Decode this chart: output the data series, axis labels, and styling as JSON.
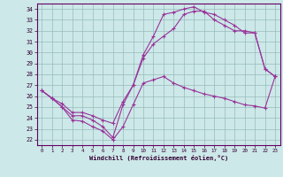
{
  "xlabel": "Windchill (Refroidissement éolien,°C)",
  "bg_color": "#cce8e8",
  "line_color": "#993399",
  "grid_color": "#99bbbb",
  "xlim": [
    -0.5,
    23.5
  ],
  "ylim": [
    21.5,
    34.5
  ],
  "xticks": [
    0,
    1,
    2,
    3,
    4,
    5,
    6,
    7,
    8,
    9,
    10,
    11,
    12,
    13,
    14,
    15,
    16,
    17,
    18,
    19,
    20,
    21,
    22,
    23
  ],
  "yticks": [
    22,
    23,
    24,
    25,
    26,
    27,
    28,
    29,
    30,
    31,
    32,
    33,
    34
  ],
  "line1_x": [
    0,
    1,
    2,
    3,
    4,
    5,
    6,
    7,
    8,
    9,
    10,
    11,
    12,
    13,
    14,
    15,
    16,
    17,
    18,
    19,
    20,
    21,
    22,
    23
  ],
  "line1_y": [
    26.5,
    25.8,
    25.0,
    23.8,
    23.7,
    23.2,
    22.8,
    22.0,
    23.2,
    25.2,
    27.2,
    27.5,
    27.8,
    27.2,
    26.8,
    26.5,
    26.2,
    26.0,
    25.8,
    25.5,
    25.2,
    25.1,
    24.9,
    27.8
  ],
  "line2_x": [
    0,
    1,
    2,
    3,
    4,
    5,
    6,
    7,
    8,
    9,
    10,
    11,
    12,
    13,
    14,
    15,
    16,
    17,
    18,
    19,
    20,
    21,
    22,
    23
  ],
  "line2_y": [
    26.5,
    25.8,
    25.0,
    24.2,
    24.2,
    23.8,
    23.2,
    22.2,
    25.2,
    27.0,
    29.8,
    31.5,
    33.5,
    33.7,
    34.0,
    34.2,
    33.7,
    33.5,
    33.0,
    32.5,
    31.8,
    31.8,
    28.5,
    27.8
  ],
  "line3_x": [
    0,
    1,
    2,
    3,
    4,
    5,
    6,
    7,
    8,
    9,
    10,
    11,
    12,
    13,
    14,
    15,
    16,
    17,
    18,
    19,
    20,
    21,
    22,
    23
  ],
  "line3_y": [
    26.5,
    25.8,
    25.3,
    24.5,
    24.5,
    24.2,
    23.8,
    23.5,
    25.5,
    27.0,
    29.5,
    30.8,
    31.5,
    32.2,
    33.5,
    33.8,
    33.8,
    33.0,
    32.5,
    32.0,
    32.0,
    31.8,
    28.5,
    27.8
  ]
}
